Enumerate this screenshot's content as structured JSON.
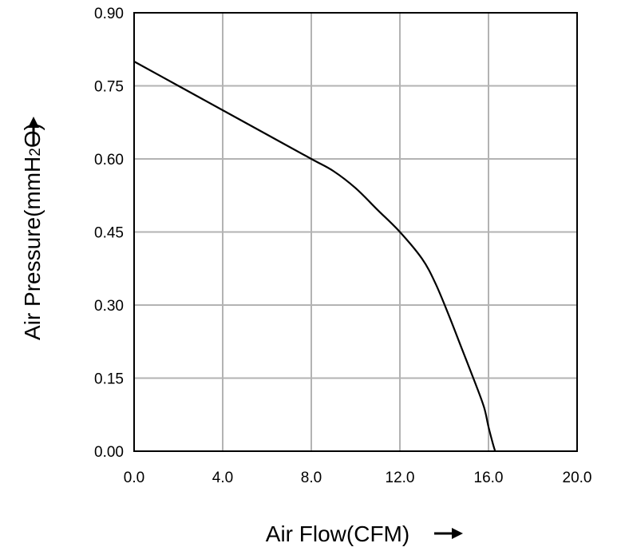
{
  "chart_data": {
    "type": "line",
    "xlabel": "Air Flow(CFM)",
    "ylabel_prefix": "Air Pressure(mmH",
    "ylabel_subscript": "2",
    "ylabel_suffix": "O)",
    "xlim": [
      0,
      20
    ],
    "ylim": [
      0,
      0.9
    ],
    "x_ticks": [
      0,
      4,
      8,
      12,
      16,
      20
    ],
    "x_tick_labels": [
      "0.0",
      "4.0",
      "8.0",
      "12.0",
      "16.0",
      "20.0"
    ],
    "y_ticks": [
      0,
      0.15,
      0.3,
      0.45,
      0.6,
      0.75,
      0.9
    ],
    "y_tick_labels": [
      "0.00",
      "0.15",
      "0.30",
      "0.45",
      "0.60",
      "0.75",
      "0.90"
    ],
    "grid": true,
    "series": [
      {
        "color": "#000000",
        "x": [
          0,
          2,
          4,
          6,
          8,
          9,
          10,
          11,
          12,
          13,
          13.6,
          14.2,
          14.8,
          15.4,
          15.8,
          16.0,
          16.2,
          16.3
        ],
        "y": [
          0.8,
          0.75,
          0.7,
          0.65,
          0.6,
          0.575,
          0.54,
          0.495,
          0.45,
          0.395,
          0.345,
          0.28,
          0.21,
          0.14,
          0.09,
          0.05,
          0.015,
          0.0
        ]
      }
    ]
  }
}
